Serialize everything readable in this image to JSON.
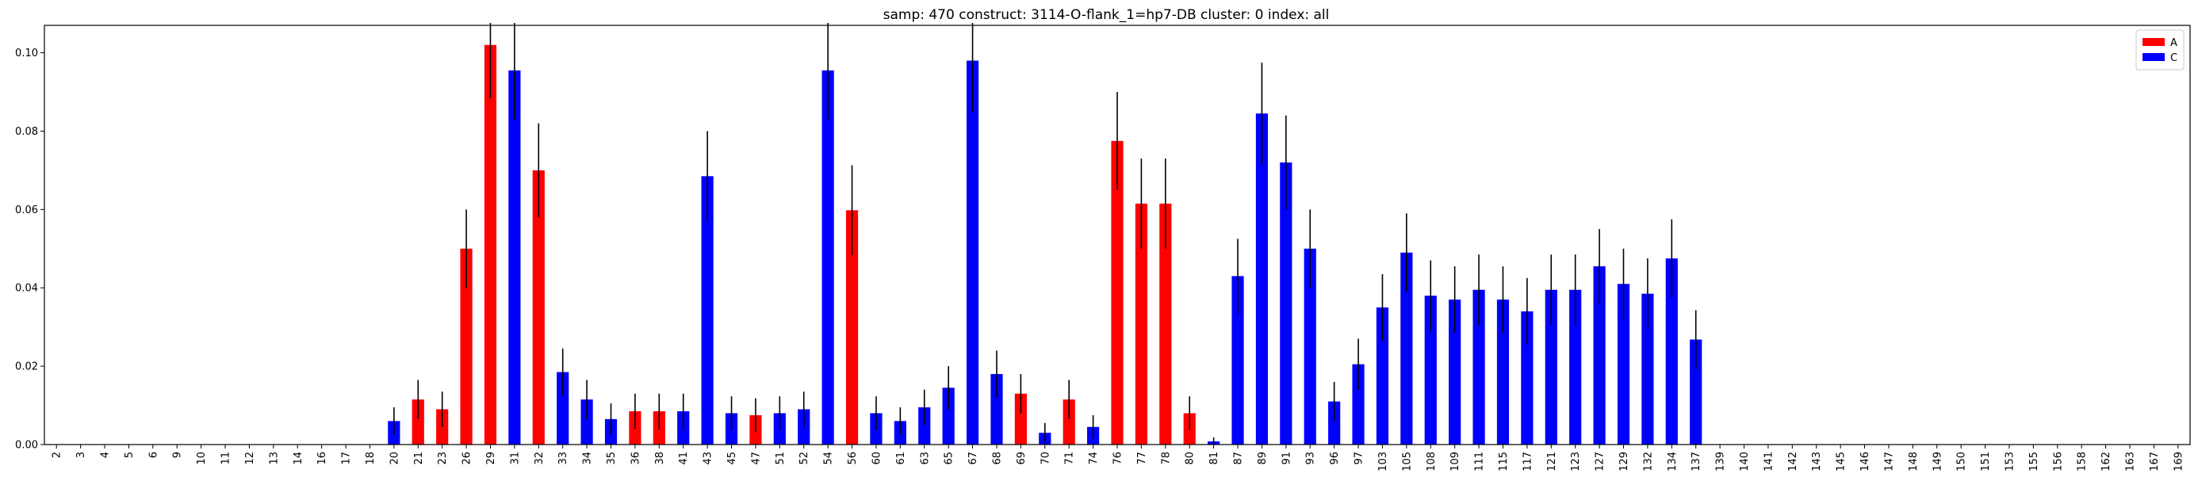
{
  "chart_data": {
    "type": "bar",
    "title": "samp: 470  construct: 3114-O-flank_1=hp7-DB  cluster: 0  index: all",
    "xlabel": "",
    "ylabel": "",
    "ylim": [
      0,
      0.107
    ],
    "yticks": [
      0.0,
      0.02,
      0.04,
      0.06,
      0.08,
      0.1
    ],
    "ytick_labels": [
      "0.00",
      "0.02",
      "0.04",
      "0.06",
      "0.08",
      "0.10"
    ],
    "grid": false,
    "legend_position": "top-right",
    "colors": {
      "A": "#ff0000",
      "C": "#0000ff",
      "error": "#000000"
    },
    "legend": [
      {
        "label": "A",
        "color": "#ff0000"
      },
      {
        "label": "C",
        "color": "#0000ff"
      }
    ],
    "categories": [
      "2",
      "3",
      "4",
      "5",
      "6",
      "9",
      "10",
      "11",
      "12",
      "13",
      "14",
      "16",
      "17",
      "18",
      "20",
      "21",
      "23",
      "26",
      "29",
      "31",
      "32",
      "33",
      "34",
      "35",
      "36",
      "38",
      "41",
      "43",
      "45",
      "47",
      "51",
      "52",
      "54",
      "56",
      "60",
      "61",
      "63",
      "65",
      "67",
      "68",
      "69",
      "70",
      "71",
      "74",
      "76",
      "77",
      "78",
      "80",
      "81",
      "87",
      "89",
      "91",
      "93",
      "96",
      "97",
      "103",
      "105",
      "108",
      "109",
      "111",
      "115",
      "117",
      "121",
      "123",
      "127",
      "129",
      "132",
      "134",
      "137",
      "139",
      "140",
      "141",
      "142",
      "143",
      "145",
      "146",
      "147",
      "148",
      "149",
      "150",
      "151",
      "153",
      "155",
      "156",
      "158",
      "162",
      "163",
      "167",
      "169"
    ],
    "bars": [
      {
        "series": "A",
        "value": 0,
        "error": 0
      },
      {
        "series": "A",
        "value": 0,
        "error": 0
      },
      {
        "series": "A",
        "value": 0,
        "error": 0
      },
      {
        "series": "A",
        "value": 0,
        "error": 0
      },
      {
        "series": "A",
        "value": 0,
        "error": 0
      },
      {
        "series": "A",
        "value": 0,
        "error": 0
      },
      {
        "series": "A",
        "value": 0,
        "error": 0
      },
      {
        "series": "A",
        "value": 0,
        "error": 0
      },
      {
        "series": "A",
        "value": 0,
        "error": 0
      },
      {
        "series": "A",
        "value": 0,
        "error": 0
      },
      {
        "series": "A",
        "value": 0,
        "error": 0
      },
      {
        "series": "A",
        "value": 0,
        "error": 0
      },
      {
        "series": "A",
        "value": 0,
        "error": 0
      },
      {
        "series": "A",
        "value": 0,
        "error": 0
      },
      {
        "series": "C",
        "value": 0.006,
        "error": 0.0035
      },
      {
        "series": "A",
        "value": 0.0115,
        "error": 0.005
      },
      {
        "series": "A",
        "value": 0.009,
        "error": 0.0045
      },
      {
        "series": "A",
        "value": 0.05,
        "error": 0.01
      },
      {
        "series": "A",
        "value": 0.102,
        "error": 0.0135
      },
      {
        "series": "C",
        "value": 0.0955,
        "error": 0.0125
      },
      {
        "series": "A",
        "value": 0.07,
        "error": 0.012
      },
      {
        "series": "C",
        "value": 0.0185,
        "error": 0.006
      },
      {
        "series": "C",
        "value": 0.0115,
        "error": 0.005
      },
      {
        "series": "C",
        "value": 0.0065,
        "error": 0.004
      },
      {
        "series": "A",
        "value": 0.0085,
        "error": 0.0045
      },
      {
        "series": "A",
        "value": 0.0085,
        "error": 0.0045
      },
      {
        "series": "C",
        "value": 0.0085,
        "error": 0.0045
      },
      {
        "series": "C",
        "value": 0.0685,
        "error": 0.0115
      },
      {
        "series": "C",
        "value": 0.008,
        "error": 0.0043
      },
      {
        "series": "A",
        "value": 0.0075,
        "error": 0.0043
      },
      {
        "series": "C",
        "value": 0.008,
        "error": 0.0043
      },
      {
        "series": "C",
        "value": 0.009,
        "error": 0.0045
      },
      {
        "series": "C",
        "value": 0.0955,
        "error": 0.0125
      },
      {
        "series": "A",
        "value": 0.0598,
        "error": 0.0115
      },
      {
        "series": "C",
        "value": 0.008,
        "error": 0.0043
      },
      {
        "series": "C",
        "value": 0.006,
        "error": 0.0035
      },
      {
        "series": "C",
        "value": 0.0095,
        "error": 0.0045
      },
      {
        "series": "C",
        "value": 0.0145,
        "error": 0.0055
      },
      {
        "series": "C",
        "value": 0.098,
        "error": 0.013
      },
      {
        "series": "C",
        "value": 0.018,
        "error": 0.006
      },
      {
        "series": "A",
        "value": 0.013,
        "error": 0.005
      },
      {
        "series": "C",
        "value": 0.003,
        "error": 0.0025
      },
      {
        "series": "A",
        "value": 0.0115,
        "error": 0.005
      },
      {
        "series": "C",
        "value": 0.0045,
        "error": 0.003
      },
      {
        "series": "A",
        "value": 0.0775,
        "error": 0.0125
      },
      {
        "series": "A",
        "value": 0.0615,
        "error": 0.0115
      },
      {
        "series": "A",
        "value": 0.0615,
        "error": 0.0115
      },
      {
        "series": "A",
        "value": 0.008,
        "error": 0.0043
      },
      {
        "series": "C",
        "value": 0.0008,
        "error": 0.001
      },
      {
        "series": "C",
        "value": 0.043,
        "error": 0.0095
      },
      {
        "series": "C",
        "value": 0.0845,
        "error": 0.013
      },
      {
        "series": "C",
        "value": 0.072,
        "error": 0.012
      },
      {
        "series": "C",
        "value": 0.05,
        "error": 0.01
      },
      {
        "series": "C",
        "value": 0.011,
        "error": 0.005
      },
      {
        "series": "C",
        "value": 0.0205,
        "error": 0.0065
      },
      {
        "series": "C",
        "value": 0.035,
        "error": 0.0085
      },
      {
        "series": "C",
        "value": 0.049,
        "error": 0.01
      },
      {
        "series": "C",
        "value": 0.038,
        "error": 0.009
      },
      {
        "series": "C",
        "value": 0.037,
        "error": 0.0085
      },
      {
        "series": "C",
        "value": 0.0395,
        "error": 0.009
      },
      {
        "series": "C",
        "value": 0.037,
        "error": 0.0085
      },
      {
        "series": "C",
        "value": 0.034,
        "error": 0.0085
      },
      {
        "series": "C",
        "value": 0.0395,
        "error": 0.009
      },
      {
        "series": "C",
        "value": 0.0395,
        "error": 0.009
      },
      {
        "series": "C",
        "value": 0.0455,
        "error": 0.0095
      },
      {
        "series": "C",
        "value": 0.041,
        "error": 0.009
      },
      {
        "series": "C",
        "value": 0.0385,
        "error": 0.009
      },
      {
        "series": "C",
        "value": 0.0475,
        "error": 0.01
      },
      {
        "series": "C",
        "value": 0.0268,
        "error": 0.0075
      },
      {
        "series": "A",
        "value": 0,
        "error": 0
      },
      {
        "series": "A",
        "value": 0,
        "error": 0
      },
      {
        "series": "A",
        "value": 0,
        "error": 0
      },
      {
        "series": "A",
        "value": 0,
        "error": 0
      },
      {
        "series": "A",
        "value": 0,
        "error": 0
      },
      {
        "series": "A",
        "value": 0,
        "error": 0
      },
      {
        "series": "A",
        "value": 0,
        "error": 0
      },
      {
        "series": "A",
        "value": 0,
        "error": 0
      },
      {
        "series": "A",
        "value": 0,
        "error": 0
      },
      {
        "series": "A",
        "value": 0,
        "error": 0
      },
      {
        "series": "A",
        "value": 0,
        "error": 0
      },
      {
        "series": "A",
        "value": 0,
        "error": 0
      },
      {
        "series": "A",
        "value": 0,
        "error": 0
      },
      {
        "series": "A",
        "value": 0,
        "error": 0
      },
      {
        "series": "A",
        "value": 0,
        "error": 0
      },
      {
        "series": "A",
        "value": 0,
        "error": 0
      },
      {
        "series": "A",
        "value": 0,
        "error": 0
      },
      {
        "series": "A",
        "value": 0,
        "error": 0
      },
      {
        "series": "A",
        "value": 0,
        "error": 0
      },
      {
        "series": "A",
        "value": 0,
        "error": 0
      }
    ]
  }
}
